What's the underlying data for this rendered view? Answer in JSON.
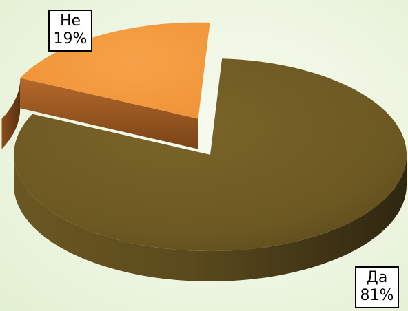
{
  "chart_data": {
    "type": "pie",
    "title": "",
    "slices": [
      {
        "label": "Да",
        "value": 81,
        "value_label": "81%",
        "color": "#6e5a23",
        "exploded": false
      },
      {
        "label": "Не",
        "value": 19,
        "value_label": "19%",
        "color": "#f39a3f",
        "exploded": true
      }
    ],
    "style": "3d",
    "legend": "none"
  }
}
